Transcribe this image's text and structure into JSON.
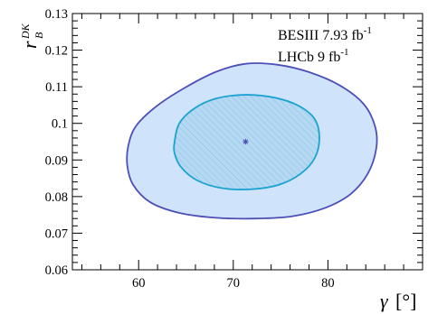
{
  "chart_data": {
    "type": "contour",
    "xlim": [
      53,
      90
    ],
    "ylim": [
      0.06,
      0.13
    ],
    "x_ticks": [
      60,
      70,
      80
    ],
    "y_ticks": [
      0.06,
      0.07,
      0.08,
      0.09,
      0.1,
      0.11,
      0.12,
      0.13
    ],
    "x_tick_labels": [
      "60",
      "70",
      "80"
    ],
    "y_tick_labels": [
      "0.06",
      "0.07",
      "0.08",
      "0.09",
      "0.1",
      "0.11",
      "0.12",
      "0.13"
    ],
    "xlabel_symbol": "γ",
    "xlabel_unit": "[°]",
    "ylabel_base": "r",
    "ylabel_sup": "DK",
    "ylabel_sub": "B",
    "legend": [
      {
        "text": "BESIII 7.93 fb",
        "sup": "-1"
      },
      {
        "text": "LHCb 9 fb",
        "sup": "-1"
      }
    ],
    "best_fit": {
      "x": 71.3,
      "y": 0.095
    },
    "contours": [
      {
        "level": "outer",
        "fill": "#cfe3fa",
        "stroke": "#4d4fb8",
        "points": [
          [
            58.9,
            0.0938
          ],
          [
            59.7,
            0.0992
          ],
          [
            61.8,
            0.1045
          ],
          [
            64.8,
            0.1096
          ],
          [
            68.2,
            0.1141
          ],
          [
            71.4,
            0.1163
          ],
          [
            74.7,
            0.116
          ],
          [
            78.0,
            0.114
          ],
          [
            81.3,
            0.1103
          ],
          [
            83.8,
            0.1052
          ],
          [
            85.0,
            0.099
          ],
          [
            85.1,
            0.093
          ],
          [
            84.2,
            0.0862
          ],
          [
            82.4,
            0.0807
          ],
          [
            79.8,
            0.077
          ],
          [
            76.2,
            0.0746
          ],
          [
            72.4,
            0.074
          ],
          [
            68.2,
            0.0742
          ],
          [
            64.2,
            0.0756
          ],
          [
            61.2,
            0.0785
          ],
          [
            59.4,
            0.0833
          ],
          [
            58.8,
            0.0885
          ]
        ]
      },
      {
        "level": "inner",
        "fill": "#b7d8f2",
        "stroke": "#1aa3d1",
        "points": [
          [
            63.8,
            0.095
          ],
          [
            64.3,
            0.1
          ],
          [
            65.9,
            0.1041
          ],
          [
            68.2,
            0.1068
          ],
          [
            71.3,
            0.1078
          ],
          [
            74.4,
            0.107
          ],
          [
            76.9,
            0.1048
          ],
          [
            78.6,
            0.1012
          ],
          [
            79.1,
            0.096
          ],
          [
            78.6,
            0.0905
          ],
          [
            77.1,
            0.0862
          ],
          [
            74.8,
            0.0832
          ],
          [
            71.9,
            0.082
          ],
          [
            68.8,
            0.0823
          ],
          [
            66.2,
            0.0844
          ],
          [
            64.5,
            0.088
          ],
          [
            63.8,
            0.0918
          ]
        ]
      }
    ]
  }
}
